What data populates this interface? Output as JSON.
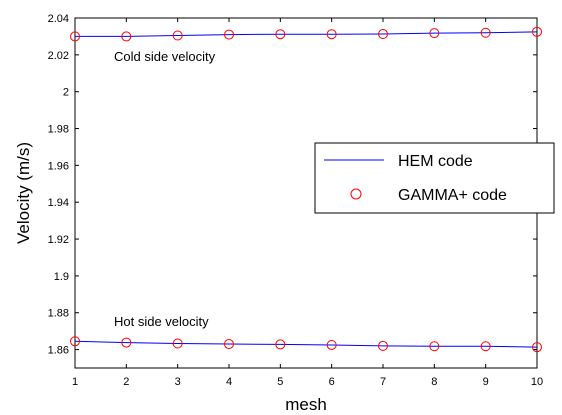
{
  "chart_data": {
    "type": "line",
    "xlabel": "mesh",
    "ylabel": "Velocity (m/s)",
    "xlim": [
      1,
      10
    ],
    "ylim": [
      1.85,
      2.04
    ],
    "x": [
      1,
      2,
      3,
      4,
      5,
      6,
      7,
      8,
      9,
      10
    ],
    "x_ticks": [
      "1",
      "2",
      "3",
      "4",
      "5",
      "6",
      "7",
      "8",
      "9",
      "10"
    ],
    "y_ticks": [
      1.86,
      1.88,
      1.9,
      1.92,
      1.94,
      1.96,
      1.98,
      2,
      2.02,
      2.04
    ],
    "y_tick_labels": [
      "1.86",
      "1.88",
      "1.9",
      "1.92",
      "1.94",
      "1.96",
      "1.98",
      "2",
      "2.02",
      "2.04"
    ],
    "annotations": [
      "Cold side velocity",
      "Hot side velocity"
    ],
    "legend_position": "right",
    "grid": false,
    "series": [
      {
        "name": "HEM code",
        "style": "line",
        "color": "#0000ff",
        "groups": [
          [
            2.03,
            2.03,
            2.0305,
            2.031,
            2.0312,
            2.0312,
            2.0313,
            2.0318,
            2.032,
            2.0325
          ],
          [
            1.8645,
            1.8638,
            1.8633,
            1.863,
            1.8628,
            1.8625,
            1.862,
            1.8618,
            1.8618,
            1.8613
          ]
        ]
      },
      {
        "name": "GAMMA+ code",
        "style": "marker",
        "marker": "circle",
        "color": "#ff0000",
        "groups": [
          [
            2.03,
            2.03,
            2.0305,
            2.031,
            2.0312,
            2.0312,
            2.0313,
            2.0318,
            2.032,
            2.0325
          ],
          [
            1.8645,
            1.8638,
            1.8633,
            1.863,
            1.8628,
            1.8625,
            1.862,
            1.8618,
            1.8618,
            1.8613
          ]
        ]
      }
    ]
  }
}
